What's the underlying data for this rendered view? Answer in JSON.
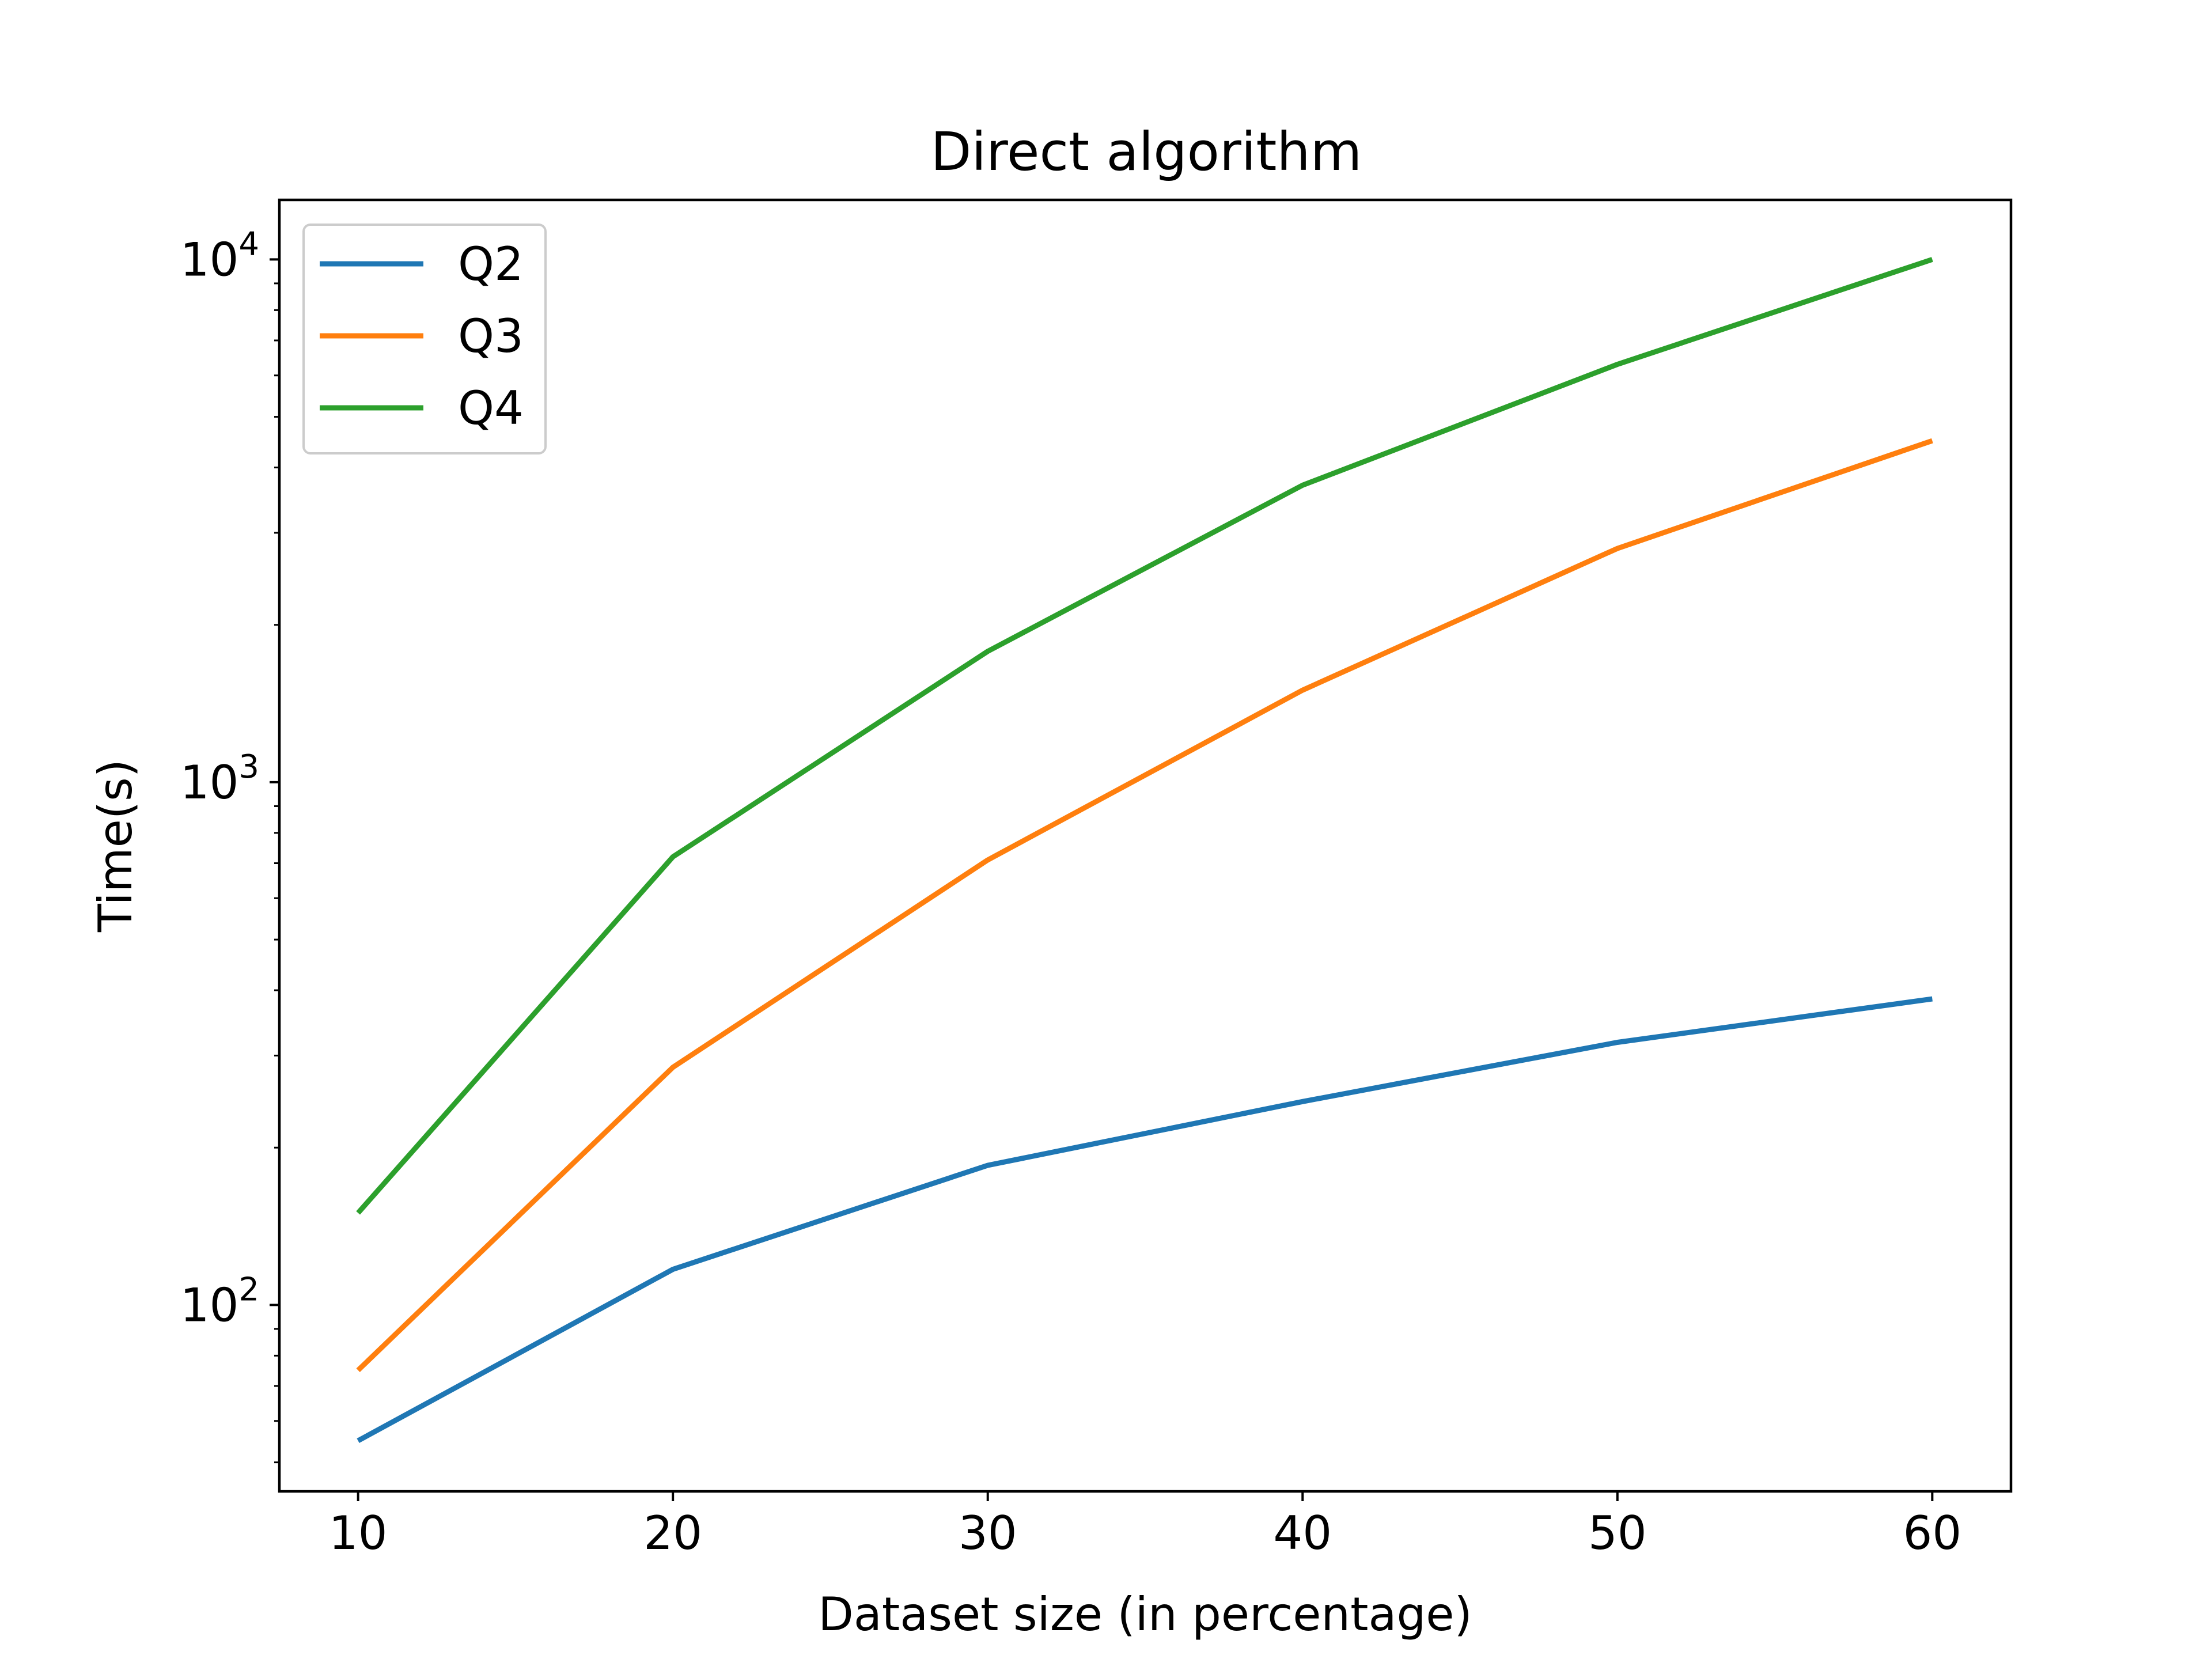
{
  "chart_data": {
    "type": "line",
    "title": "Direct algorithm",
    "xlabel": "Dataset size (in percentage)",
    "ylabel": "Time(s)",
    "yscale": "log",
    "x": [
      10,
      20,
      30,
      40,
      50,
      60
    ],
    "xticks": [
      10,
      20,
      30,
      40,
      50,
      60
    ],
    "xlim": [
      7.5,
      62.5
    ],
    "ylim": [
      44,
      13000
    ],
    "yticks": [
      {
        "value": 100,
        "base": "10",
        "exp": "2"
      },
      {
        "value": 1000,
        "base": "10",
        "exp": "3"
      },
      {
        "value": 10000,
        "base": "10",
        "exp": "4"
      }
    ],
    "grid": false,
    "legend_position": "upper left",
    "series": [
      {
        "name": "Q2",
        "color": "#1f77b4",
        "values": [
          55,
          117,
          185,
          245,
          318,
          385
        ]
      },
      {
        "name": "Q3",
        "color": "#ff7f0e",
        "values": [
          75,
          285,
          710,
          1500,
          2800,
          4500
        ]
      },
      {
        "name": "Q4",
        "color": "#2ca02c",
        "values": [
          150,
          720,
          1780,
          3700,
          6300,
          10000
        ]
      }
    ]
  }
}
